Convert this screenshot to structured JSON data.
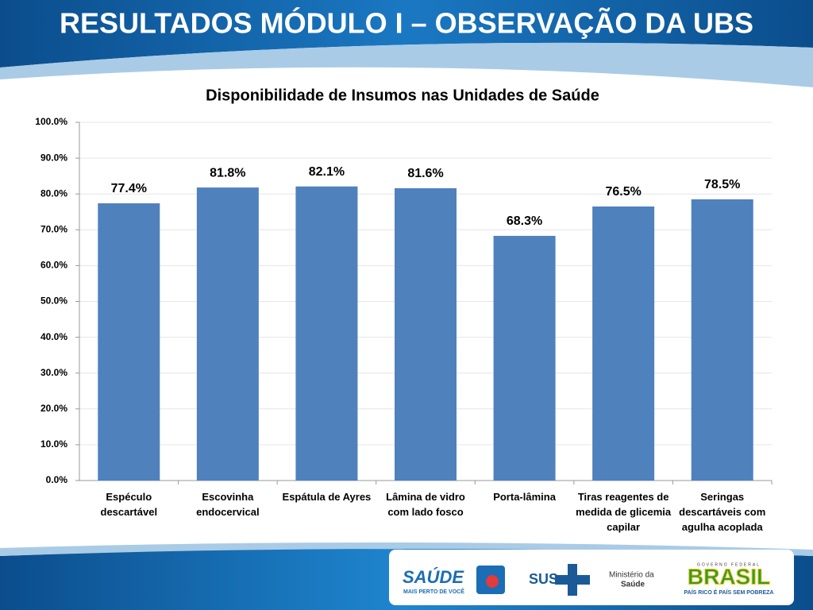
{
  "header_title": "RESULTADOS MÓDULO I – OBSERVAÇÃO DA UBS",
  "chart_data": {
    "type": "bar",
    "title": "Disponibilidade de Insumos nas Unidades de Saúde",
    "categories": [
      "Espéculo descartável",
      "Escovinha endocervical",
      "Espátula de Ayres",
      "Lâmina de vidro com lado fosco",
      "Porta-lâmina",
      "Tiras reagentes de medida de glicemia capilar",
      "Seringas descartáveis com agulha acoplada"
    ],
    "values": [
      77.4,
      81.8,
      82.1,
      81.6,
      68.3,
      76.5,
      78.5
    ],
    "value_labels": [
      "77.4%",
      "81.8%",
      "82.1%",
      "81.6%",
      "68.3%",
      "76.5%",
      "78.5%"
    ],
    "color": "#4f81bd",
    "ylim": [
      0,
      100
    ],
    "yticks": [
      {
        "value": 0,
        "label": "0.0%"
      },
      {
        "value": 10,
        "label": "10.0%"
      },
      {
        "value": 20,
        "label": "20.0%"
      },
      {
        "value": 30,
        "label": "30.0%"
      },
      {
        "value": 40,
        "label": "40.0%"
      },
      {
        "value": 50,
        "label": "50.0%"
      },
      {
        "value": 60,
        "label": "60.0%"
      },
      {
        "value": 70,
        "label": "70.0%"
      },
      {
        "value": 80,
        "label": "80.0%"
      },
      {
        "value": 90,
        "label": "90.0%"
      },
      {
        "value": 100,
        "label": "100.0%"
      }
    ],
    "grid": true
  },
  "footer": {
    "saude": "SAÚDE",
    "saude_tagline": "MAIS PERTO DE VOCÊ",
    "sus": "SUS",
    "ministerio_1": "Ministério da",
    "ministerio_2": "Saúde",
    "governo": "GOVERNO FEDERAL",
    "brasil": "BRASIL",
    "brasil_tagline": "PAÍS RICO É PAÍS SEM POBREZA"
  }
}
